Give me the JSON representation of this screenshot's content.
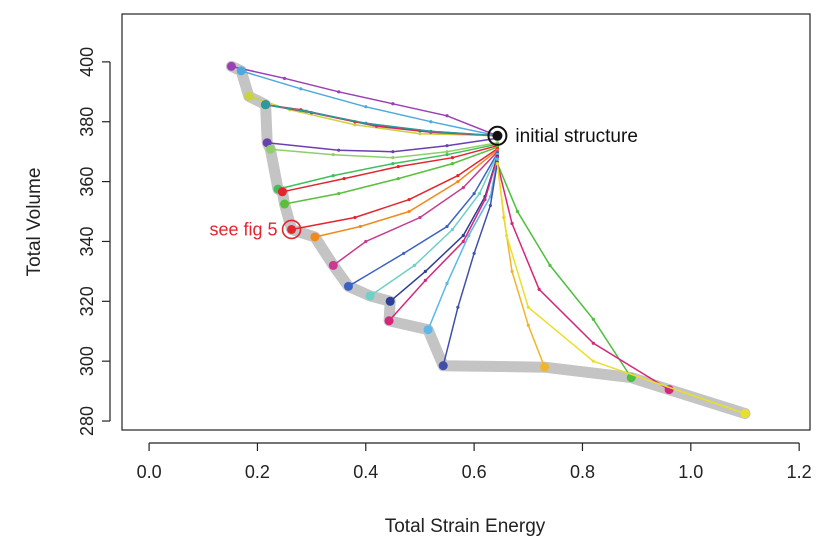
{
  "chart_data": {
    "type": "line",
    "xlabel": "Total Strain Energy",
    "ylabel": "Total Volume",
    "xlim": [
      -0.05,
      1.22
    ],
    "ylim": [
      277,
      416
    ],
    "xticks": [
      "0.0",
      "0.2",
      "0.4",
      "0.6",
      "0.8",
      "1.0",
      "1.2"
    ],
    "yticks": [
      "280",
      "300",
      "320",
      "340",
      "360",
      "380",
      "400"
    ],
    "grid": false,
    "annotations": [
      {
        "text": "initial structure",
        "x": 0.643,
        "y": 375.3,
        "color": "#111111"
      },
      {
        "text": "see fig 5",
        "x": 0.263,
        "y": 344.0,
        "color": "#e3262e"
      }
    ],
    "pareto_front": [
      [
        0.152,
        398.5
      ],
      [
        0.17,
        397.0
      ],
      [
        0.184,
        388.5
      ],
      [
        0.215,
        385.7
      ],
      [
        0.218,
        373.0
      ],
      [
        0.224,
        370.8
      ],
      [
        0.238,
        357.5
      ],
      [
        0.246,
        356.6
      ],
      [
        0.25,
        352.5
      ],
      [
        0.263,
        344.0
      ],
      [
        0.306,
        341.5
      ],
      [
        0.34,
        332.0
      ],
      [
        0.368,
        325.0
      ],
      [
        0.408,
        321.8
      ],
      [
        0.445,
        320.0
      ],
      [
        0.443,
        313.5
      ],
      [
        0.515,
        310.5
      ],
      [
        0.543,
        298.5
      ],
      [
        0.73,
        298.0
      ],
      [
        0.89,
        294.5
      ],
      [
        0.96,
        290.5
      ],
      [
        1.1,
        282.5
      ]
    ],
    "series": [
      {
        "color": "#9b3fb5",
        "points": [
          [
            0.643,
            375.3
          ],
          [
            0.55,
            382
          ],
          [
            0.45,
            386
          ],
          [
            0.35,
            390
          ],
          [
            0.25,
            394.5
          ],
          [
            0.152,
            398.5
          ]
        ]
      },
      {
        "color": "#4fa9dd",
        "points": [
          [
            0.643,
            375.3
          ],
          [
            0.52,
            380
          ],
          [
            0.4,
            385
          ],
          [
            0.28,
            391
          ],
          [
            0.17,
            397.0
          ]
        ]
      },
      {
        "color": "#c9d33a",
        "points": [
          [
            0.643,
            375.3
          ],
          [
            0.5,
            376
          ],
          [
            0.38,
            379
          ],
          [
            0.26,
            384
          ],
          [
            0.184,
            388.5
          ]
        ]
      },
      {
        "color": "#d6267a",
        "points": [
          [
            0.643,
            375.3
          ],
          [
            0.52,
            376.5
          ],
          [
            0.42,
            378.5
          ],
          [
            0.3,
            383
          ],
          [
            0.215,
            385.7
          ]
        ]
      },
      {
        "color": "#e3262e",
        "points": [
          [
            0.643,
            375.3
          ],
          [
            0.5,
            377
          ],
          [
            0.38,
            380
          ],
          [
            0.28,
            384
          ],
          [
            0.215,
            385.7
          ]
        ]
      },
      {
        "color": "#2b9a9a",
        "points": [
          [
            0.643,
            375.3
          ],
          [
            0.52,
            376.8
          ],
          [
            0.4,
            379.5
          ],
          [
            0.29,
            383.5
          ],
          [
            0.215,
            385.7
          ]
        ]
      },
      {
        "color": "#6a3fb0",
        "points": [
          [
            0.643,
            374.5
          ],
          [
            0.55,
            372
          ],
          [
            0.45,
            370
          ],
          [
            0.35,
            370.5
          ],
          [
            0.218,
            373.0
          ]
        ]
      },
      {
        "color": "#8fcf6a",
        "points": [
          [
            0.643,
            373.0
          ],
          [
            0.55,
            370
          ],
          [
            0.45,
            368
          ],
          [
            0.34,
            369
          ],
          [
            0.224,
            370.8
          ]
        ]
      },
      {
        "color": "#3fbf5a",
        "points": [
          [
            0.643,
            372.5
          ],
          [
            0.55,
            369
          ],
          [
            0.45,
            366
          ],
          [
            0.34,
            362
          ],
          [
            0.238,
            357.5
          ]
        ]
      },
      {
        "color": "#e3262e",
        "points": [
          [
            0.643,
            372.0
          ],
          [
            0.56,
            368
          ],
          [
            0.46,
            365
          ],
          [
            0.36,
            361
          ],
          [
            0.246,
            356.6
          ]
        ]
      },
      {
        "color": "#5abf3c",
        "points": [
          [
            0.643,
            371.5
          ],
          [
            0.56,
            366
          ],
          [
            0.46,
            361
          ],
          [
            0.35,
            356
          ],
          [
            0.25,
            352.5
          ]
        ]
      },
      {
        "color": "#e3262e",
        "points": [
          [
            0.643,
            371.0
          ],
          [
            0.57,
            362
          ],
          [
            0.48,
            354
          ],
          [
            0.38,
            348
          ],
          [
            0.263,
            344.0
          ]
        ]
      },
      {
        "color": "#f08a1c",
        "points": [
          [
            0.643,
            370.5
          ],
          [
            0.57,
            360
          ],
          [
            0.48,
            350
          ],
          [
            0.39,
            345
          ],
          [
            0.306,
            341.5
          ]
        ]
      },
      {
        "color": "#c9398f",
        "points": [
          [
            0.643,
            370.0
          ],
          [
            0.58,
            358
          ],
          [
            0.5,
            348
          ],
          [
            0.4,
            340
          ],
          [
            0.34,
            332.0
          ]
        ]
      },
      {
        "color": "#3b62c4",
        "points": [
          [
            0.643,
            369.5
          ],
          [
            0.6,
            356
          ],
          [
            0.55,
            345
          ],
          [
            0.47,
            336
          ],
          [
            0.368,
            325.0
          ]
        ]
      },
      {
        "color": "#6fd0c8",
        "points": [
          [
            0.643,
            369.0
          ],
          [
            0.61,
            356
          ],
          [
            0.56,
            344
          ],
          [
            0.49,
            332
          ],
          [
            0.408,
            321.8
          ]
        ]
      },
      {
        "color": "#2c3e96",
        "points": [
          [
            0.643,
            368.5
          ],
          [
            0.62,
            355
          ],
          [
            0.58,
            342
          ],
          [
            0.51,
            330
          ],
          [
            0.445,
            320.0
          ]
        ]
      },
      {
        "color": "#d6267a",
        "points": [
          [
            0.643,
            368.0
          ],
          [
            0.62,
            354
          ],
          [
            0.58,
            340
          ],
          [
            0.51,
            327
          ],
          [
            0.443,
            313.5
          ]
        ]
      },
      {
        "color": "#5bb8e8",
        "points": [
          [
            0.643,
            367.5
          ],
          [
            0.63,
            355
          ],
          [
            0.59,
            342
          ],
          [
            0.55,
            326
          ],
          [
            0.515,
            310.5
          ]
        ]
      },
      {
        "color": "#4050a8",
        "points": [
          [
            0.643,
            366.5
          ],
          [
            0.63,
            352
          ],
          [
            0.6,
            336
          ],
          [
            0.57,
            318
          ],
          [
            0.543,
            298.5
          ]
        ]
      },
      {
        "color": "#f0b52a",
        "points": [
          [
            0.643,
            366.0
          ],
          [
            0.655,
            348
          ],
          [
            0.67,
            330
          ],
          [
            0.7,
            312
          ],
          [
            0.73,
            298.0
          ]
        ]
      },
      {
        "color": "#4dbf3c",
        "points": [
          [
            0.643,
            366.0
          ],
          [
            0.68,
            350
          ],
          [
            0.74,
            332
          ],
          [
            0.82,
            314
          ],
          [
            0.89,
            294.5
          ]
        ]
      },
      {
        "color": "#d6267a",
        "points": [
          [
            0.643,
            366.0
          ],
          [
            0.67,
            346
          ],
          [
            0.72,
            324
          ],
          [
            0.82,
            306
          ],
          [
            0.96,
            290.5
          ]
        ]
      },
      {
        "color": "#e8e02a",
        "points": [
          [
            0.643,
            366.0
          ],
          [
            0.66,
            342
          ],
          [
            0.7,
            318
          ],
          [
            0.82,
            300
          ],
          [
            1.1,
            282.5
          ]
        ]
      }
    ]
  }
}
